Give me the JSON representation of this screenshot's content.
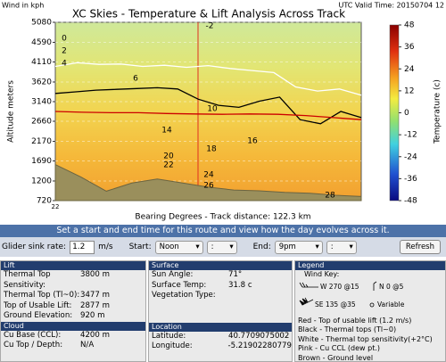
{
  "header": {
    "wind_units": "Wind in kph",
    "valid_time": "UTC Valid Time: 20150704 12"
  },
  "chart_data": {
    "type": "line",
    "title": "XC Skies - Temperature & Lift Analysis Across Track",
    "ylabel": "Altitude meters",
    "xlabel": "Bearing Degrees - Track distance: 122.3 km",
    "x_start_label": "22",
    "ylim": [
      720,
      5080
    ],
    "yticks": [
      720,
      1200,
      1690,
      2170,
      2660,
      3140,
      3620,
      4110,
      4590,
      5080
    ],
    "grid": true,
    "series": [
      {
        "name": "White - Thermal top sensitivity(+2°C)",
        "color": "#ffffff",
        "values": [
          4000,
          4090,
          4050,
          4060,
          4000,
          4030,
          3980,
          4020,
          3950,
          3900,
          3850,
          3500,
          3400,
          3450,
          3300
        ]
      },
      {
        "name": "Black - Thermal tops (Tl~0)",
        "color": "#000000",
        "values": [
          3340,
          3380,
          3420,
          3440,
          3460,
          3480,
          3450,
          3200,
          3050,
          3000,
          3150,
          3250,
          2700,
          2600,
          2900,
          2750
        ]
      },
      {
        "name": "Red - Top of usable lift (1.2 m/s)",
        "color": "#cc0000",
        "values": [
          2900,
          2880,
          2870,
          2870,
          2850,
          2840,
          2830,
          2840,
          2830,
          2800,
          2750,
          2700
        ]
      },
      {
        "name": "Brown - Ground level",
        "color": "#9a8f5c",
        "values": [
          1600,
          1300,
          950,
          1150,
          1250,
          1150,
          1050,
          980,
          960,
          920,
          900,
          850,
          820
        ]
      }
    ],
    "annotations": [
      "-2",
      "0",
      "2",
      "4",
      "6",
      "10",
      "14",
      "16",
      "18",
      "20",
      "22",
      "24",
      "26",
      "28"
    ],
    "colorbar": {
      "label": "Temperature (c)",
      "lim": [
        -48,
        48
      ],
      "ticks": [
        48,
        36,
        24,
        12,
        0,
        -12,
        -24,
        -36,
        -48
      ]
    }
  },
  "banner": "Set a start and end time for this route and view how the day evolves across it.",
  "controls": {
    "sink_label": "Glider sink rate:",
    "sink_value": "1.2",
    "sink_unit": "m/s",
    "start_label": "Start:",
    "start_hour": "Noon",
    "start_minute": ":",
    "end_label": "End:",
    "end_hour": "9pm",
    "end_minute": ":",
    "refresh": "Refresh"
  },
  "lift": {
    "title": "Lift",
    "rows": [
      [
        "Thermal Top Sensitivity:",
        "3800 m"
      ],
      [
        "Thermal Top (Tl~0):",
        "3477 m"
      ],
      [
        "Top of Usable Lift:",
        "2877 m"
      ],
      [
        "Ground Elevation:",
        "920 m"
      ]
    ]
  },
  "cloud": {
    "title": "Cloud",
    "rows": [
      [
        "Cu Base (CCL):",
        "4200 m"
      ],
      [
        "Cu Top / Depth:",
        "N/A"
      ]
    ]
  },
  "surface": {
    "title": "Surface",
    "rows": [
      [
        "Sun Angle:",
        "71°"
      ],
      [
        "Surface Temp:",
        "31.8 c"
      ],
      [
        "Vegetation Type:"
      ]
    ]
  },
  "location": {
    "title": "Location",
    "rows": [
      [
        "Latitude:",
        "40.7709075002"
      ],
      [
        "Longitude:",
        "-5.21902280779"
      ]
    ]
  },
  "legend": {
    "title": "Legend",
    "wind_key": "Wind Key:",
    "wind_examples": [
      "W 270 @15",
      "N 0 @5",
      "SE 135 @35",
      "Variable"
    ],
    "pink": "Pink - Cu CCL (dew pt.)"
  }
}
